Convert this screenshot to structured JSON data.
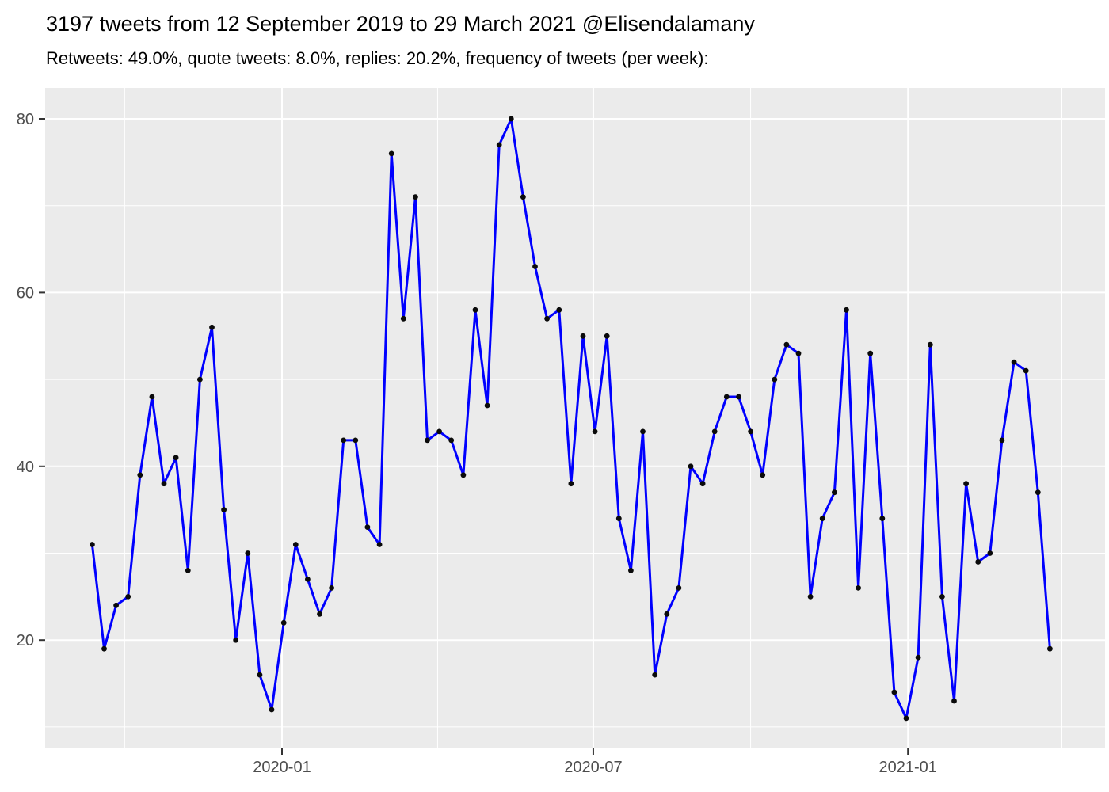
{
  "header": {
    "title": "3197 tweets from 12 September 2019 to 29 March 2021 @Elisendalamany",
    "subtitle": "Retweets: 49.0%, quote tweets: 8.0%, replies: 20.2%, frequency of tweets (per week):"
  },
  "chart_data": {
    "type": "line",
    "title": "3197 tweets from 12 September 2019 to 29 March 2021 @Elisendalamany",
    "subtitle": "Retweets: 49.0%, quote tweets: 8.0%, replies: 20.2%, frequency of tweets (per week):",
    "series_name": "tweets-per-week",
    "x": [
      "2019-09-12",
      "2019-09-19",
      "2019-09-26",
      "2019-10-03",
      "2019-10-10",
      "2019-10-17",
      "2019-10-24",
      "2019-10-31",
      "2019-11-07",
      "2019-11-14",
      "2019-11-21",
      "2019-11-28",
      "2019-12-05",
      "2019-12-12",
      "2019-12-19",
      "2019-12-26",
      "2020-01-02",
      "2020-01-09",
      "2020-01-16",
      "2020-01-23",
      "2020-01-30",
      "2020-02-06",
      "2020-02-13",
      "2020-02-20",
      "2020-02-27",
      "2020-03-05",
      "2020-03-12",
      "2020-03-19",
      "2020-03-26",
      "2020-04-02",
      "2020-04-09",
      "2020-04-16",
      "2020-04-23",
      "2020-04-30",
      "2020-05-07",
      "2020-05-14",
      "2020-05-21",
      "2020-05-28",
      "2020-06-04",
      "2020-06-11",
      "2020-06-18",
      "2020-06-25",
      "2020-07-02",
      "2020-07-09",
      "2020-07-16",
      "2020-07-23",
      "2020-07-30",
      "2020-08-06",
      "2020-08-13",
      "2020-08-20",
      "2020-08-27",
      "2020-09-03",
      "2020-09-10",
      "2020-09-17",
      "2020-09-24",
      "2020-10-01",
      "2020-10-08",
      "2020-10-15",
      "2020-10-22",
      "2020-10-29",
      "2020-11-05",
      "2020-11-12",
      "2020-11-19",
      "2020-11-26",
      "2020-12-03",
      "2020-12-10",
      "2020-12-17",
      "2020-12-24",
      "2020-12-31",
      "2021-01-07",
      "2021-01-14",
      "2021-01-21",
      "2021-01-28",
      "2021-02-04",
      "2021-02-11",
      "2021-02-18",
      "2021-02-25",
      "2021-03-04",
      "2021-03-11",
      "2021-03-18",
      "2021-03-25"
    ],
    "values": [
      31,
      19,
      24,
      25,
      39,
      48,
      38,
      41,
      28,
      50,
      56,
      35,
      20,
      30,
      16,
      12,
      22,
      31,
      27,
      23,
      26,
      43,
      43,
      33,
      31,
      76,
      57,
      71,
      43,
      44,
      43,
      39,
      58,
      47,
      77,
      80,
      71,
      63,
      57,
      58,
      38,
      55,
      44,
      55,
      34,
      28,
      44,
      16,
      23,
      26,
      40,
      38,
      44,
      48,
      48,
      44,
      39,
      50,
      54,
      53,
      25,
      34,
      37,
      58,
      26,
      53,
      34,
      14,
      11,
      18,
      54,
      25,
      13,
      38,
      29,
      30,
      43,
      52,
      51,
      37,
      19
    ],
    "xlabel": "",
    "ylabel": "",
    "x_tick_labels": [
      "2020-01",
      "2020-07",
      "2021-01"
    ],
    "x_tick_dates": [
      "2020-01-01",
      "2020-07-01",
      "2021-01-01"
    ],
    "x_minor_dates": [
      "2019-10-01",
      "2020-04-01",
      "2020-10-01",
      "2021-04-01"
    ],
    "y_ticks": [
      20,
      40,
      60,
      80
    ],
    "y_minor_ticks": [
      10,
      30,
      50,
      70
    ],
    "ylim": [
      7.5,
      83.5
    ],
    "x_range": [
      "2019-09-12",
      "2021-03-25"
    ],
    "grid": "on",
    "legend_position": "none",
    "colors": {
      "line": "#0000FF",
      "point": "#0A0A0A",
      "panel_bg": "#EBEBEB",
      "grid": "#FFFFFF",
      "axis_text": "#4D4D4D",
      "tick_mark": "#333333",
      "title_text": "#000000"
    }
  }
}
